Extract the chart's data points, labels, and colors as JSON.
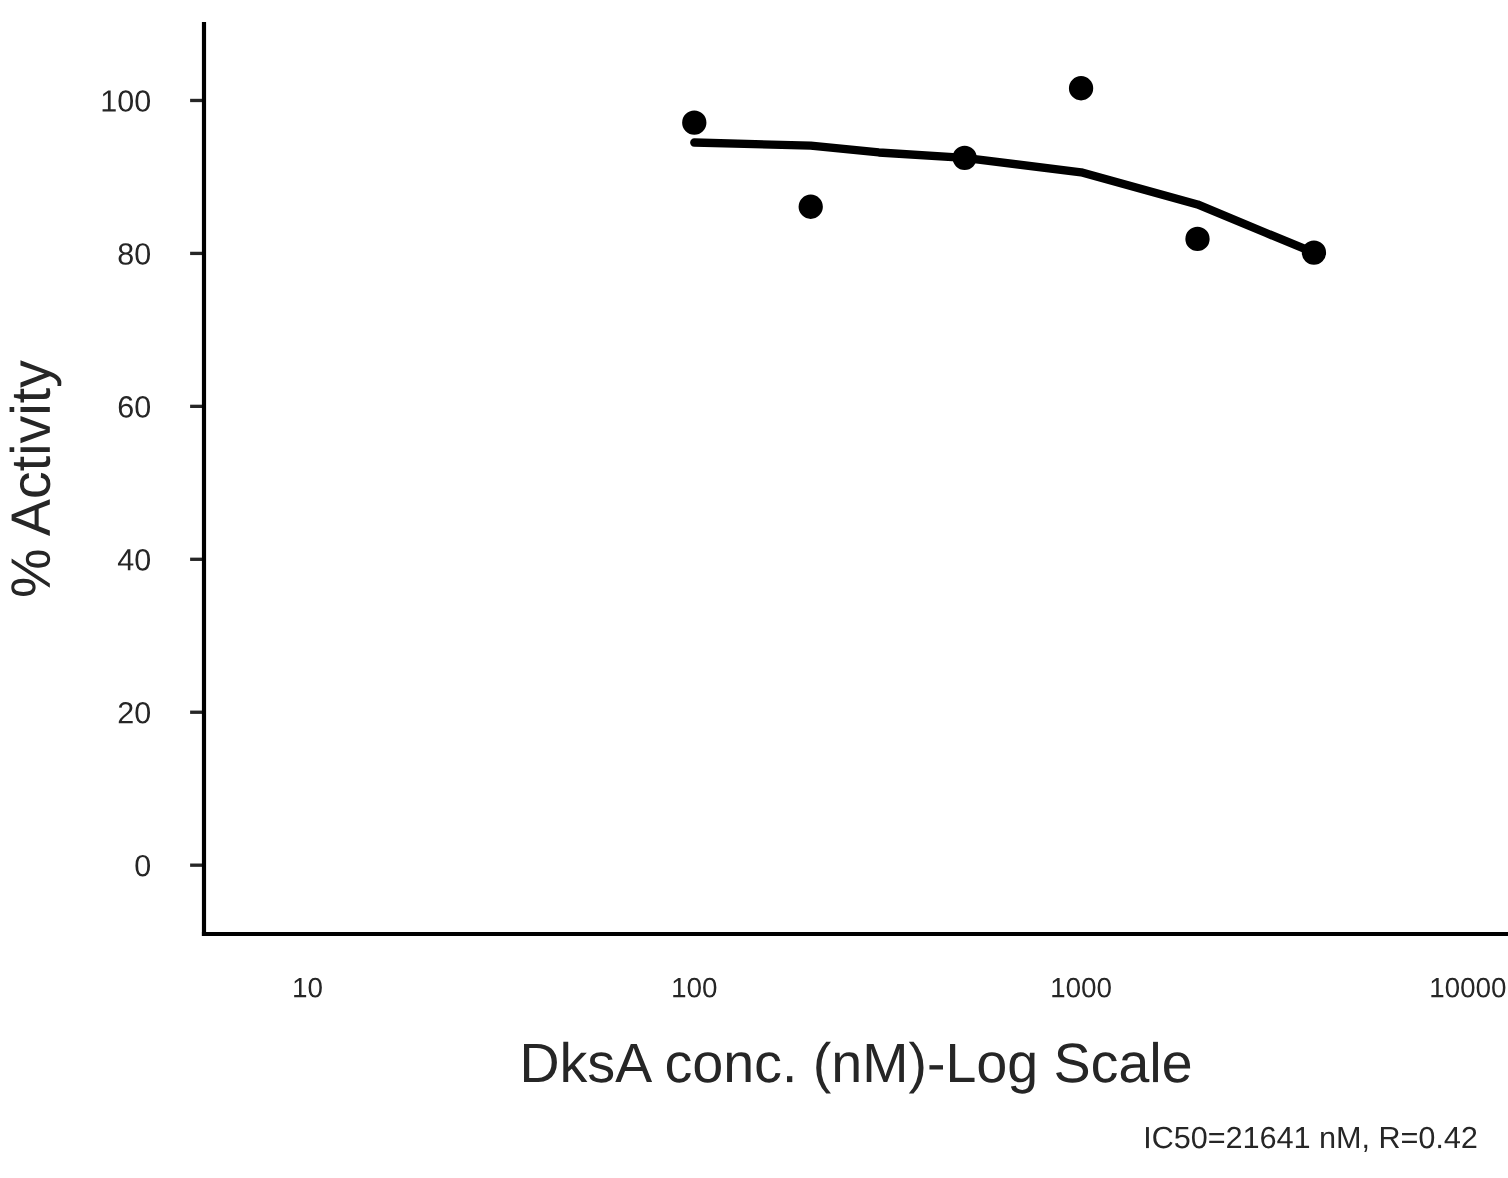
{
  "chart_data": {
    "type": "scatter",
    "xlabel": "DksA conc. (nM)-Log Scale",
    "ylabel": "% Activity",
    "log": "x",
    "marker": "circle",
    "grid": false,
    "series": [
      {
        "color": "#000000",
        "x": [
          100,
          200,
          500,
          1000,
          2000,
          4000
        ],
        "values": [
          97.1,
          86.1,
          92.5,
          101.6,
          81.9,
          80.1
        ]
      },
      {
        "type": "line",
        "color": "#000000",
        "marker": "none",
        "x": [
          100,
          200,
          300,
          500,
          1000,
          2000,
          3000,
          4000
        ],
        "values": [
          94.5,
          94.1,
          93.2,
          92.5,
          90.6,
          86.4,
          82.7,
          80.1
        ]
      }
    ],
    "xlim": [
      5.4,
      12700
    ],
    "xticks": [
      10,
      100,
      1000,
      10000
    ],
    "ylim": [
      -9,
      110
    ],
    "yticks": [
      0,
      20,
      40,
      60,
      80,
      100
    ],
    "annotations": [
      "IC50=21641 nM, R=0.42"
    ]
  }
}
